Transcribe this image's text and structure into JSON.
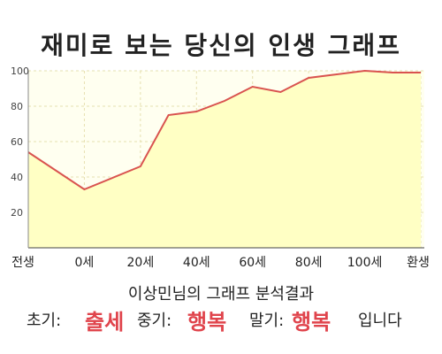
{
  "chart_data": {
    "type": "area",
    "title": "재미로 보는 당신의 인생 그래프",
    "x_labels": [
      "전생",
      "0세",
      "20세",
      "40세",
      "60세",
      "80세",
      "100세",
      "환생"
    ],
    "x": [
      -20,
      0,
      20,
      40,
      60,
      80,
      100,
      120
    ],
    "y_ticks": [
      20,
      40,
      60,
      80,
      100
    ],
    "ylim": [
      0,
      100
    ],
    "grid": true,
    "series": [
      {
        "x": [
          -20,
          0,
          20,
          30,
          40,
          50,
          60,
          70,
          80,
          90,
          100,
          110,
          120
        ],
        "values": [
          54,
          33,
          46,
          75,
          77,
          83,
          91,
          88,
          96,
          98,
          100,
          99,
          99
        ]
      }
    ],
    "colors": {
      "line": "#d9534f",
      "fill": "#ffffc4",
      "plot_bg": "#fffff0",
      "grid": "#e6e0b0"
    }
  },
  "summary": {
    "caption": "이상민님의 그래프 분석결과",
    "early_label": "초기:",
    "early_value": "출세",
    "mid_label": "중기:",
    "mid_value": "행복",
    "late_label": "말기:",
    "late_value": "행복",
    "ending": "입니다"
  }
}
